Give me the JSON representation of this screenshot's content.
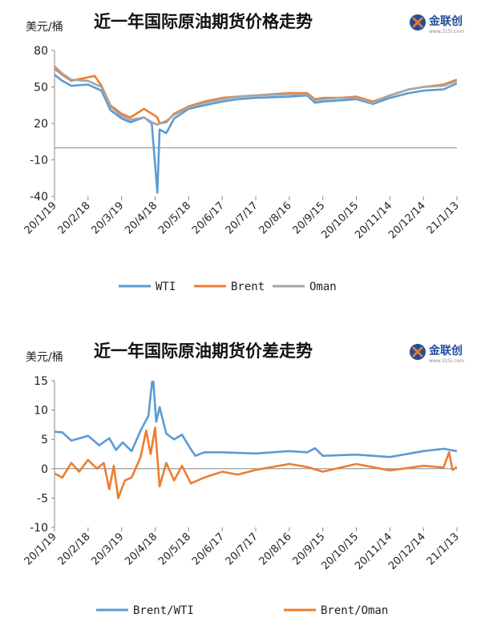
{
  "chart_data": [
    {
      "type": "line",
      "title": "近一年国际原油期货价格走势",
      "ylabel": "美元/桶",
      "ylim": [
        -40,
        80
      ],
      "yticks": [
        "80",
        "50",
        "20",
        "-10",
        "-40"
      ],
      "x_ticks": [
        "20/1/19",
        "20/2/18",
        "20/3/19",
        "20/4/18",
        "20/5/18",
        "20/6/17",
        "20/7/17",
        "20/8/16",
        "20/9/15",
        "20/10/15",
        "20/11/14",
        "20/12/14",
        "21/1/13"
      ],
      "legend_position": "bottom",
      "series": [
        {
          "name": "WTI",
          "color": "#5B9BD5",
          "points": [
            [
              "2020-01-19",
              60
            ],
            [
              "2020-01-26",
              55
            ],
            [
              "2020-02-03",
              51
            ],
            [
              "2020-02-18",
              52
            ],
            [
              "2020-03-01",
              47
            ],
            [
              "2020-03-09",
              31
            ],
            [
              "2020-03-19",
              24
            ],
            [
              "2020-03-27",
              21
            ],
            [
              "2020-04-08",
              25
            ],
            [
              "2020-04-15",
              20
            ],
            [
              "2020-04-20",
              -37
            ],
            [
              "2020-04-22",
              15
            ],
            [
              "2020-04-28",
              12
            ],
            [
              "2020-05-05",
              24
            ],
            [
              "2020-05-18",
              32
            ],
            [
              "2020-06-01",
              35
            ],
            [
              "2020-06-17",
              38
            ],
            [
              "2020-07-01",
              40
            ],
            [
              "2020-07-17",
              41
            ],
            [
              "2020-08-16",
              42
            ],
            [
              "2020-09-01",
              43
            ],
            [
              "2020-09-08",
              37
            ],
            [
              "2020-09-15",
              38
            ],
            [
              "2020-10-01",
              39
            ],
            [
              "2020-10-15",
              40
            ],
            [
              "2020-10-30",
              36
            ],
            [
              "2020-11-14",
              41
            ],
            [
              "2020-12-01",
              45
            ],
            [
              "2020-12-14",
              47
            ],
            [
              "2021-01-01",
              48
            ],
            [
              "2021-01-13",
              53
            ]
          ]
        },
        {
          "name": "Brent",
          "color": "#ED7D31",
          "points": [
            [
              "2020-01-19",
              65
            ],
            [
              "2020-01-26",
              60
            ],
            [
              "2020-02-03",
              55
            ],
            [
              "2020-02-18",
              58
            ],
            [
              "2020-02-24",
              59
            ],
            [
              "2020-03-01",
              51
            ],
            [
              "2020-03-09",
              35
            ],
            [
              "2020-03-19",
              28
            ],
            [
              "2020-03-27",
              25
            ],
            [
              "2020-04-08",
              32
            ],
            [
              "2020-04-15",
              28
            ],
            [
              "2020-04-20",
              25
            ],
            [
              "2020-04-22",
              20
            ],
            [
              "2020-04-28",
              21
            ],
            [
              "2020-05-05",
              28
            ],
            [
              "2020-05-18",
              34
            ],
            [
              "2020-06-01",
              38
            ],
            [
              "2020-06-17",
              41
            ],
            [
              "2020-07-01",
              42
            ],
            [
              "2020-07-17",
              43
            ],
            [
              "2020-08-16",
              45
            ],
            [
              "2020-09-01",
              45
            ],
            [
              "2020-09-08",
              40
            ],
            [
              "2020-09-15",
              41
            ],
            [
              "2020-10-01",
              41
            ],
            [
              "2020-10-15",
              42
            ],
            [
              "2020-10-30",
              38
            ],
            [
              "2020-11-14",
              43
            ],
            [
              "2020-12-01",
              48
            ],
            [
              "2020-12-14",
              50
            ],
            [
              "2021-01-01",
              52
            ],
            [
              "2021-01-13",
              56
            ]
          ]
        },
        {
          "name": "Oman",
          "color": "#A5A5A5",
          "points": [
            [
              "2020-01-19",
              67
            ],
            [
              "2020-01-26",
              61
            ],
            [
              "2020-02-03",
              56
            ],
            [
              "2020-02-18",
              55
            ],
            [
              "2020-03-01",
              50
            ],
            [
              "2020-03-09",
              34
            ],
            [
              "2020-03-19",
              26
            ],
            [
              "2020-03-27",
              23
            ],
            [
              "2020-04-08",
              25
            ],
            [
              "2020-04-15",
              21
            ],
            [
              "2020-04-20",
              19
            ],
            [
              "2020-04-22",
              20
            ],
            [
              "2020-04-28",
              22
            ],
            [
              "2020-05-05",
              27
            ],
            [
              "2020-05-18",
              33
            ],
            [
              "2020-06-01",
              37
            ],
            [
              "2020-06-17",
              40
            ],
            [
              "2020-07-01",
              42
            ],
            [
              "2020-07-17",
              43
            ],
            [
              "2020-08-16",
              44
            ],
            [
              "2020-09-01",
              44
            ],
            [
              "2020-09-08",
              39
            ],
            [
              "2020-09-15",
              40
            ],
            [
              "2020-10-01",
              41
            ],
            [
              "2020-10-15",
              41
            ],
            [
              "2020-10-30",
              37
            ],
            [
              "2020-11-14",
              43
            ],
            [
              "2020-12-01",
              48
            ],
            [
              "2020-12-14",
              50
            ],
            [
              "2021-01-01",
              51
            ],
            [
              "2021-01-13",
              55
            ]
          ]
        }
      ]
    },
    {
      "type": "line",
      "title": "近一年国际原油期货价差走势",
      "ylabel": "美元/桶",
      "ylim": [
        -10,
        15
      ],
      "yticks": [
        "15",
        "10",
        "5",
        "0",
        "-5",
        "-10"
      ],
      "x_ticks": [
        "20/1/19",
        "20/2/18",
        "20/3/19",
        "20/4/18",
        "20/5/18",
        "20/6/17",
        "20/7/17",
        "20/8/16",
        "20/9/15",
        "20/10/15",
        "20/11/14",
        "20/12/14",
        "21/1/13"
      ],
      "legend_position": "bottom",
      "series": [
        {
          "name": "Brent/WTI",
          "color": "#5B9BD5",
          "points": [
            [
              "2020-01-19",
              6.3
            ],
            [
              "2020-01-26",
              6.2
            ],
            [
              "2020-02-03",
              4.8
            ],
            [
              "2020-02-18",
              5.6
            ],
            [
              "2020-02-28",
              4.0
            ],
            [
              "2020-03-08",
              5.2
            ],
            [
              "2020-03-14",
              3.2
            ],
            [
              "2020-03-20",
              4.5
            ],
            [
              "2020-03-28",
              3.0
            ],
            [
              "2020-04-05",
              6.5
            ],
            [
              "2020-04-12",
              9.0
            ],
            [
              "2020-04-16",
              16
            ],
            [
              "2020-04-19",
              8.0
            ],
            [
              "2020-04-22",
              10.5
            ],
            [
              "2020-04-28",
              6.0
            ],
            [
              "2020-05-05",
              5.0
            ],
            [
              "2020-05-12",
              5.8
            ],
            [
              "2020-05-20",
              3.3
            ],
            [
              "2020-05-24",
              2.2
            ],
            [
              "2020-06-01",
              2.8
            ],
            [
              "2020-06-17",
              2.8
            ],
            [
              "2020-07-17",
              2.6
            ],
            [
              "2020-08-16",
              3.0
            ],
            [
              "2020-09-01",
              2.8
            ],
            [
              "2020-09-08",
              3.5
            ],
            [
              "2020-09-15",
              2.2
            ],
            [
              "2020-10-15",
              2.4
            ],
            [
              "2020-11-14",
              2.0
            ],
            [
              "2020-12-14",
              3.0
            ],
            [
              "2021-01-01",
              3.4
            ],
            [
              "2021-01-13",
              3.0
            ]
          ]
        },
        {
          "name": "Brent/Oman",
          "color": "#ED7D31",
          "points": [
            [
              "2020-01-19",
              -0.8
            ],
            [
              "2020-01-26",
              -1.5
            ],
            [
              "2020-02-03",
              1.0
            ],
            [
              "2020-02-10",
              -0.5
            ],
            [
              "2020-02-18",
              1.5
            ],
            [
              "2020-02-26",
              0.0
            ],
            [
              "2020-03-03",
              1.0
            ],
            [
              "2020-03-08",
              -3.5
            ],
            [
              "2020-03-12",
              0.5
            ],
            [
              "2020-03-16",
              -5.0
            ],
            [
              "2020-03-22",
              -2.0
            ],
            [
              "2020-03-28",
              -1.5
            ],
            [
              "2020-04-05",
              2.0
            ],
            [
              "2020-04-10",
              6.5
            ],
            [
              "2020-04-14",
              2.5
            ],
            [
              "2020-04-18",
              7.0
            ],
            [
              "2020-04-22",
              -3.0
            ],
            [
              "2020-04-28",
              1.0
            ],
            [
              "2020-05-05",
              -2.0
            ],
            [
              "2020-05-12",
              0.5
            ],
            [
              "2020-05-20",
              -2.5
            ],
            [
              "2020-06-01",
              -1.5
            ],
            [
              "2020-06-17",
              -0.5
            ],
            [
              "2020-07-01",
              -1.0
            ],
            [
              "2020-07-17",
              -0.2
            ],
            [
              "2020-08-16",
              0.8
            ],
            [
              "2020-09-01",
              0.3
            ],
            [
              "2020-09-15",
              -0.5
            ],
            [
              "2020-10-15",
              0.8
            ],
            [
              "2020-11-14",
              -0.3
            ],
            [
              "2020-12-14",
              0.5
            ],
            [
              "2021-01-01",
              0.2
            ],
            [
              "2021-01-06",
              2.8
            ],
            [
              "2021-01-09",
              -0.2
            ],
            [
              "2021-01-13",
              0.3
            ]
          ]
        }
      ]
    }
  ]
}
